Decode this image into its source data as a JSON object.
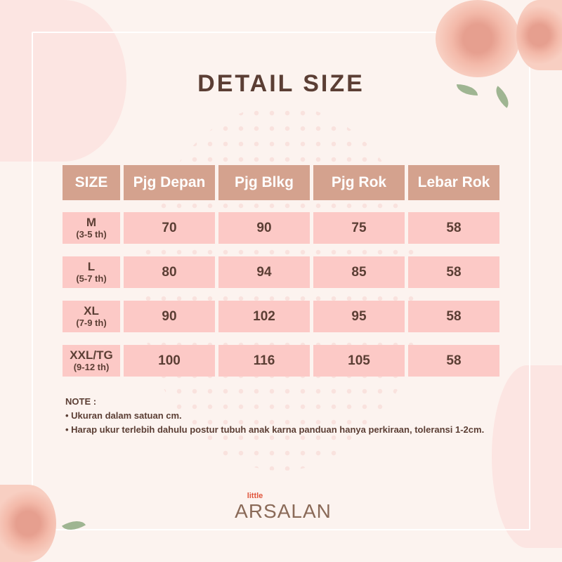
{
  "title": "DETAIL SIZE",
  "colors": {
    "header": "#d4a28e",
    "row": "#fcc9c6",
    "text": "#5b3e34",
    "background": "#fcf3ef"
  },
  "table": {
    "headers": [
      "SIZE",
      "Pjg Depan",
      "Pjg Blkg",
      "Pjg Rok",
      "Lebar Rok"
    ],
    "rows": [
      {
        "size": "M",
        "age": "(3-5 th)",
        "values": [
          "70",
          "90",
          "75",
          "58"
        ]
      },
      {
        "size": "L",
        "age": "(5-7 th)",
        "values": [
          "80",
          "94",
          "85",
          "58"
        ]
      },
      {
        "size": "XL",
        "age": "(7-9 th)",
        "values": [
          "90",
          "102",
          "95",
          "58"
        ]
      },
      {
        "size": "XXL/TG",
        "age": "(9-12 th)",
        "values": [
          "100",
          "116",
          "105",
          "58"
        ]
      }
    ]
  },
  "note": {
    "label": "NOTE :",
    "lines": [
      "• Ukuran dalam satuan cm.",
      "• Harap ukur terlebih dahulu postur tubuh anak karna panduan hanya perkiraan, toleransi 1-2cm."
    ]
  },
  "logo": {
    "small": "little",
    "main": "ARSALAN"
  }
}
